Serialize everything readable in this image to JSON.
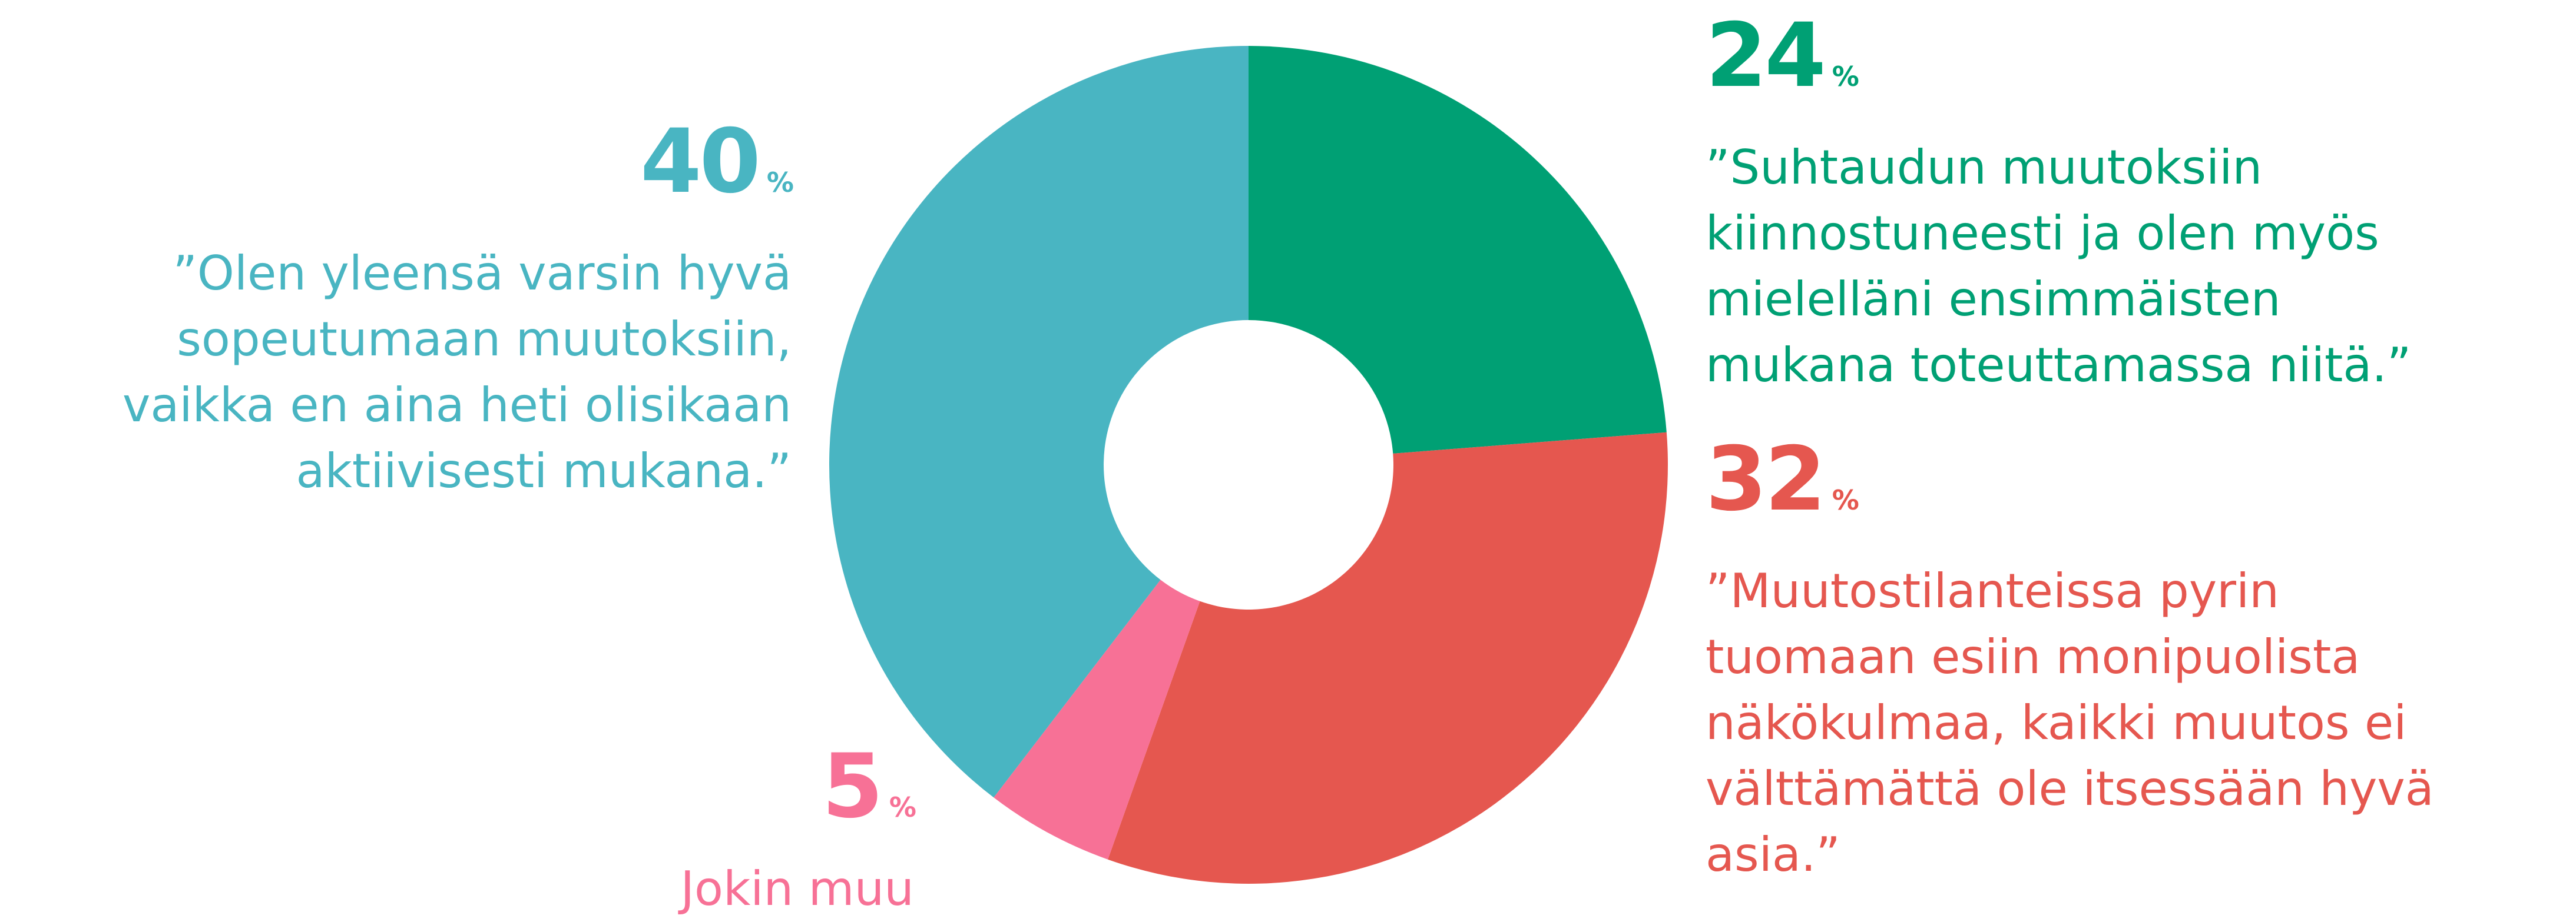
{
  "chart_data": {
    "type": "donut",
    "unit": "%",
    "categories": [
      "”Suhtaudun muutoksiin\nkiinnostuneesti ja olen myös\nmielelläni ensimmäisten\nmukana toteuttamassa niitä.”",
      "”Muutostilanteissa pyrin\ntuomaan esiin monipuolista\nnäkökulmaa, kaikki muutos ei\nvälttämättä ole itsessään hyvä\nasia.”",
      "Jokin muu",
      "”Olen yleensä varsin hyvä\nsopeutumaan muutoksiin,\nvaikka en aina heti olisikaan\naktiivisesti mukana.”"
    ],
    "values": [
      24,
      32,
      5,
      40
    ],
    "colors": [
      "#00a074",
      "#e5574f",
      "#f77196",
      "#49b5c2"
    ]
  }
}
